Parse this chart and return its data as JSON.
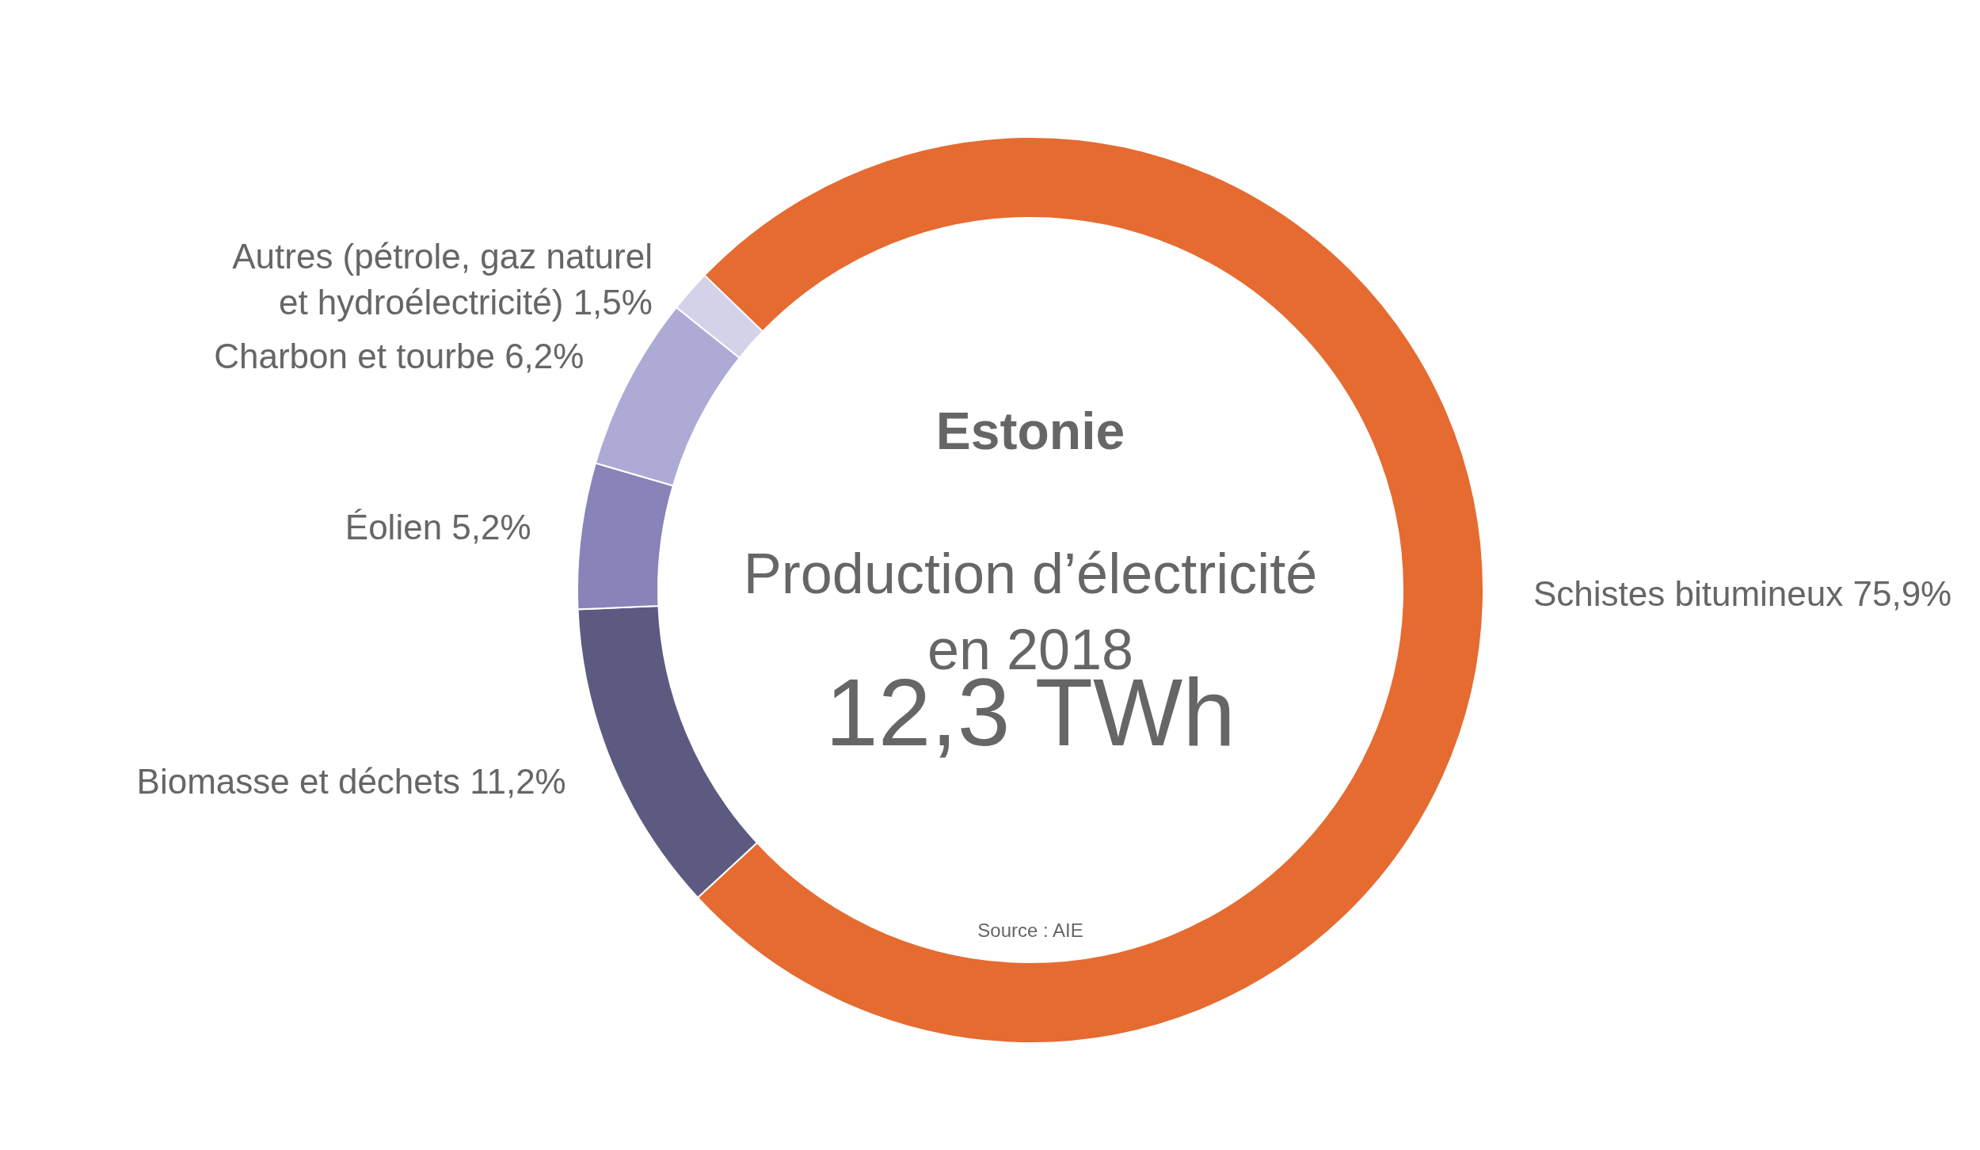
{
  "chart_data": {
    "type": "donut",
    "title": "Estonie",
    "subtitle": "Production d’électricité en 2018",
    "categories": [
      "Schistes bitumineux",
      "Biomasse et déchets",
      "Éolien",
      "Charbon et tourbe",
      "Autres (pétrole, gaz naturel et hydroélectricité)"
    ],
    "values": [
      75.9,
      11.2,
      5.2,
      6.2,
      1.5
    ],
    "value_labels": [
      "75,9%",
      "11,2%",
      "5,2%",
      "6,2%",
      "1,5%"
    ],
    "colors": [
      "#e56b31",
      "#5c5a80",
      "#8883b8",
      "#aeaad6",
      "#d3d2e9"
    ],
    "annotations": [
      "12,3 TWh",
      "Source : AIE"
    ]
  }
}
